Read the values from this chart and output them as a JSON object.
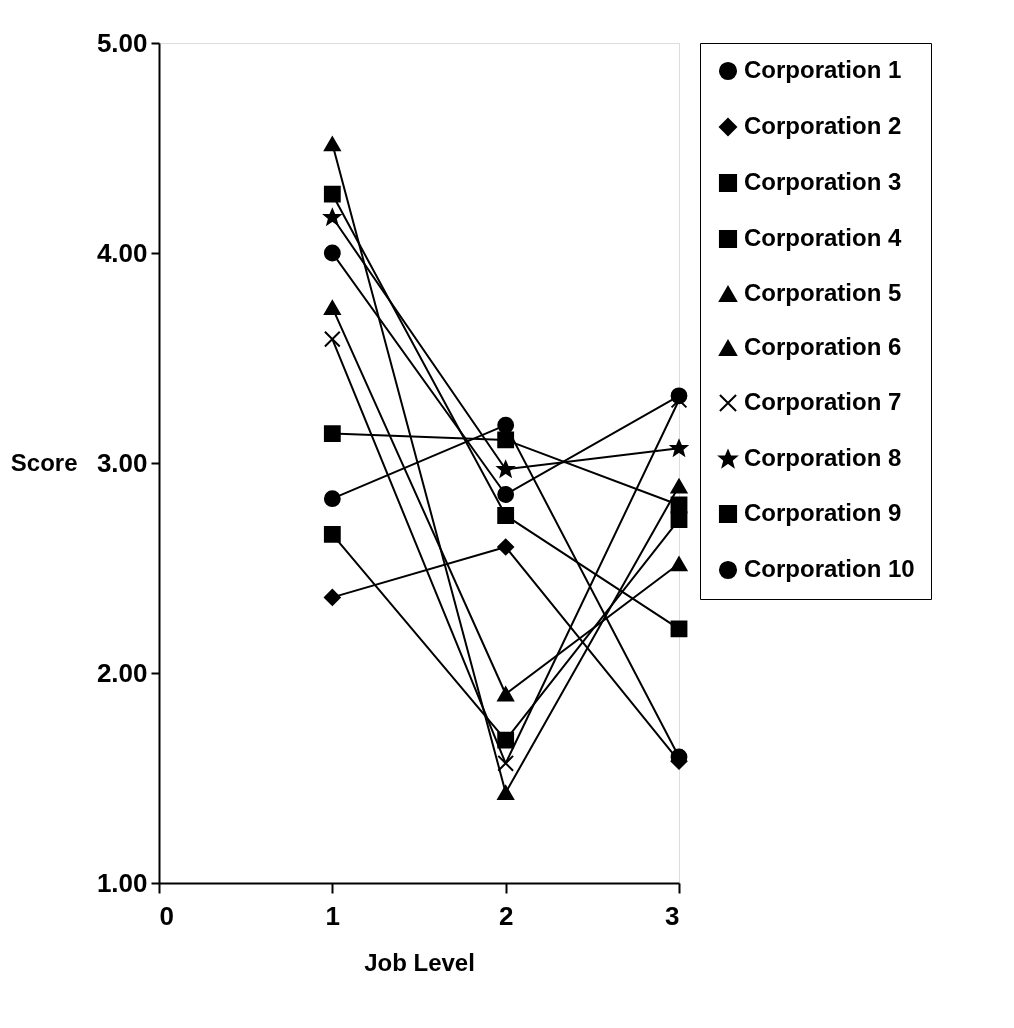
{
  "chart_data": {
    "type": "line",
    "xlabel": "Job Level",
    "ylabel": "Score",
    "x": [
      1,
      2,
      3
    ],
    "xlim": [
      0,
      3
    ],
    "xticks": [
      {
        "value": 0,
        "label": "0"
      },
      {
        "value": 1,
        "label": "1"
      },
      {
        "value": 2,
        "label": "2"
      },
      {
        "value": 3,
        "label": "3"
      }
    ],
    "ylim": [
      1,
      5
    ],
    "yticks": [
      {
        "value": 1,
        "label": "1.00"
      },
      {
        "value": 2,
        "label": "2.00"
      },
      {
        "value": 3,
        "label": "3.00"
      },
      {
        "value": 4,
        "label": "4.00"
      },
      {
        "value": 5,
        "label": "5.00"
      }
    ],
    "grid": false,
    "legend": "right",
    "line_style": "solid",
    "series": [
      {
        "name": "Corporation 1",
        "color": "#000000",
        "marker": "circle",
        "values": [
          2.83,
          3.18,
          1.6
        ]
      },
      {
        "name": "Corporation 2",
        "color": "#000000",
        "marker": "diamond",
        "values": [
          2.36,
          2.6,
          1.58
        ]
      },
      {
        "name": "Corporation 3",
        "color": "#000000",
        "marker": "square",
        "values": [
          4.28,
          2.75,
          2.21
        ]
      },
      {
        "name": "Corporation 4",
        "color": "#000000",
        "marker": "square",
        "values": [
          2.66,
          1.68,
          2.73
        ]
      },
      {
        "name": "Corporation 5",
        "color": "#000000",
        "marker": "triangle",
        "values": [
          4.52,
          1.43,
          2.89
        ]
      },
      {
        "name": "Corporation 6",
        "color": "#000000",
        "marker": "triangle",
        "values": [
          3.74,
          1.9,
          2.52
        ]
      },
      {
        "name": "Corporation 7",
        "color": "#000000",
        "marker": "cross",
        "values": [
          3.59,
          1.57,
          3.3
        ]
      },
      {
        "name": "Corporation 8",
        "color": "#000000",
        "marker": "star",
        "values": [
          4.17,
          2.97,
          3.07
        ]
      },
      {
        "name": "Corporation 9",
        "color": "#000000",
        "marker": "square",
        "values": [
          3.14,
          3.11,
          2.8
        ]
      },
      {
        "name": "Corporation 10",
        "color": "#000000",
        "marker": "circle",
        "values": [
          4.0,
          2.85,
          3.32
        ]
      }
    ]
  }
}
